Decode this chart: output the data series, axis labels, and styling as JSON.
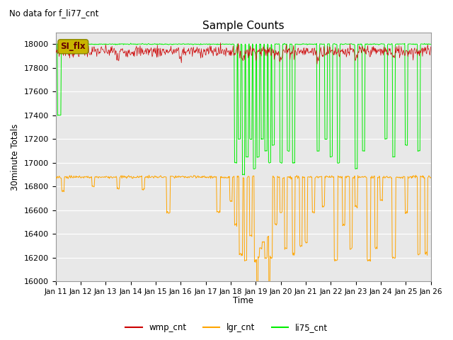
{
  "title": "Sample Counts",
  "subtitle": "No data for f_li77_cnt",
  "ylabel": "30minute Totals",
  "xlabel": "Time",
  "ylim": [
    16000,
    18100
  ],
  "plot_bg_color": "#e8e8e8",
  "x_tick_labels": [
    "Jan 11",
    "Jan 12",
    "Jan 13",
    "Jan 14",
    "Jan 15",
    "Jan 16",
    "Jan 17",
    "Jan 18",
    "Jan 19",
    "Jan 20",
    "Jan 21",
    "Jan 22",
    "Jan 23",
    "Jan 24",
    "Jan 25",
    "Jan 26"
  ],
  "annotation_text": "SI_flx",
  "annotation_color": "#c8b400",
  "wmp_color": "#cc0000",
  "lgr_color": "#ffa500",
  "li75_color": "#00ee00",
  "legend_labels": [
    "wmp_cnt",
    "lgr_cnt",
    "li75_cnt"
  ],
  "wmp_base": 17940,
  "wmp_noise_std": 25,
  "lgr_base": 16880,
  "lgr_noise_std": 6,
  "li75_base": 18000,
  "li75_noise_std": 2
}
